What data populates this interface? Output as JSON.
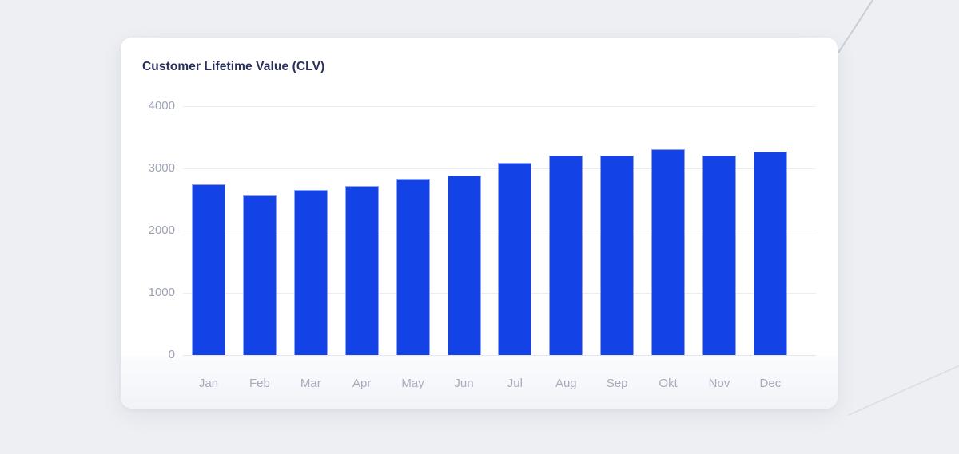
{
  "card": {
    "title": "Customer Lifetime Value (CLV)"
  },
  "chart_data": {
    "type": "bar",
    "title": "Customer Lifetime Value (CLV)",
    "categories": [
      "Jan",
      "Feb",
      "Mar",
      "Apr",
      "May",
      "Jun",
      "Jul",
      "Aug",
      "Sep",
      "Okt",
      "Nov",
      "Dec"
    ],
    "values": [
      2740,
      2560,
      2650,
      2720,
      2830,
      2880,
      3090,
      3210,
      3200,
      3310,
      3205,
      3270
    ],
    "xlabel": "",
    "ylabel": "",
    "ylim": [
      0,
      4000
    ],
    "yticks": [
      0,
      1000,
      2000,
      3000,
      4000
    ],
    "grid": true,
    "legend": false
  },
  "colors": {
    "page_background": "#EDEFF3",
    "card_background": "#FFFFFF",
    "title_text": "#2A305C",
    "bar_fill": "#1343E6",
    "bar_border": "#8DA3EF",
    "gridline": "#EBEDF1",
    "zero_line": "#E4E7EC",
    "y_label_text": "#9CA2B4",
    "x_label_text": "#A7ADBD",
    "deco_line_top_right": "#C9CDD5",
    "deco_line_bottom_right": "#D8D6DD"
  }
}
